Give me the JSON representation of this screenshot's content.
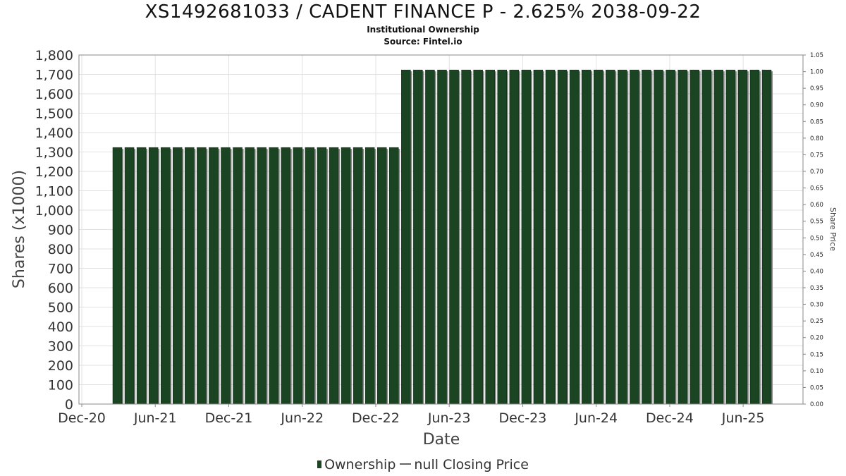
{
  "header": {
    "title": "XS1492681033 / CADENT FINANCE P - 2.625% 2038-09-22",
    "subtitle": "Institutional Ownership",
    "source": "Source: Fintel.io"
  },
  "legend": {
    "ownership": "Ownership",
    "price": "null Closing Price"
  },
  "colors": {
    "bar": "#1a4422",
    "bar_shadow": "#888888",
    "grid": "#e2e2e2",
    "axis": "#888888"
  },
  "chart_data": {
    "type": "bar",
    "xlabel": "Date",
    "ylabel": "Shares (x1000)",
    "y2label": "Share Price",
    "ylim": [
      0,
      1800
    ],
    "y2lim": [
      0,
      1.05
    ],
    "y_ticks": [
      "0",
      "100",
      "200",
      "300",
      "400",
      "500",
      "600",
      "700",
      "800",
      "900",
      "1,000",
      "1,100",
      "1,200",
      "1,300",
      "1,400",
      "1,500",
      "1,600",
      "1,700",
      "1,800"
    ],
    "y2_ticks": [
      "0.00",
      "0.05",
      "0.10",
      "0.15",
      "0.20",
      "0.25",
      "0.30",
      "0.35",
      "0.40",
      "0.45",
      "0.50",
      "0.55",
      "0.60",
      "0.65",
      "0.70",
      "0.75",
      "0.80",
      "0.85",
      "0.90",
      "0.95",
      "1.00",
      "1.05"
    ],
    "x_ticks": [
      "Dec-20",
      "Jun-21",
      "Dec-21",
      "Jun-22",
      "Dec-22",
      "Jun-23",
      "Dec-23",
      "Jun-24",
      "Dec-24",
      "Jun-25"
    ],
    "grid": true,
    "legend_position": "bottom",
    "series": [
      {
        "name": "Ownership",
        "values": [
          1323,
          1323,
          1323,
          1323,
          1323,
          1323,
          1323,
          1323,
          1323,
          1323,
          1323,
          1323,
          1323,
          1323,
          1323,
          1323,
          1323,
          1323,
          1323,
          1323,
          1323,
          1323,
          1323,
          1323,
          1723,
          1723,
          1723,
          1723,
          1723,
          1723,
          1723,
          1723,
          1723,
          1723,
          1723,
          1723,
          1723,
          1723,
          1723,
          1723,
          1723,
          1723,
          1723,
          1723,
          1723,
          1723,
          1723,
          1723,
          1723,
          1723,
          1723,
          1723,
          1723,
          1723,
          1723
        ]
      }
    ]
  }
}
